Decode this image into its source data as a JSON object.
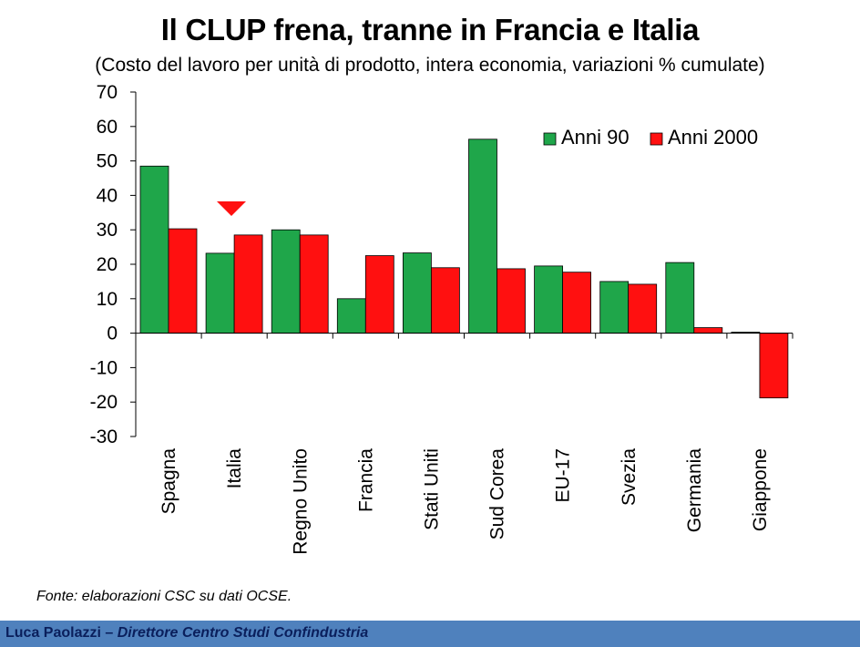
{
  "title": "Il CLUP frena, tranne in Francia e Italia",
  "subtitle": "(Costo del lavoro per unità di prodotto, intera economia, variazioni % cumulate)",
  "source": "Fonte: elaborazioni CSC su dati OCSE.",
  "footer": {
    "author": "Luca Paolazzi",
    "separator": " – ",
    "role": "Direttore Centro Studi Confindustria"
  },
  "colors": {
    "anni90": "#1fa64a",
    "anni2000": "#ff1010",
    "marker": "#ff1010"
  },
  "chart_data": {
    "type": "bar",
    "categories": [
      "Spagna",
      "Italia",
      "Regno Unito",
      "Francia",
      "Stati Uniti",
      "Sud Corea",
      "EU-17",
      "Svezia",
      "Germania",
      "Giappone"
    ],
    "series": [
      {
        "name": "Anni 90",
        "values": [
          48.5,
          23.2,
          30.0,
          10.0,
          23.3,
          56.3,
          19.5,
          15.0,
          20.5,
          0.3
        ]
      },
      {
        "name": "Anni 2000",
        "values": [
          30.3,
          28.5,
          28.5,
          22.5,
          19.0,
          18.7,
          17.7,
          14.2,
          1.6,
          -18.8
        ]
      }
    ],
    "ylim": [
      -30,
      70
    ],
    "yticks": [
      70,
      60,
      50,
      40,
      30,
      20,
      10,
      0,
      -10,
      -20,
      -30
    ],
    "legend": "top-right",
    "grid": false,
    "annotation": {
      "type": "down-triangle-marker",
      "category": "Italia"
    }
  }
}
